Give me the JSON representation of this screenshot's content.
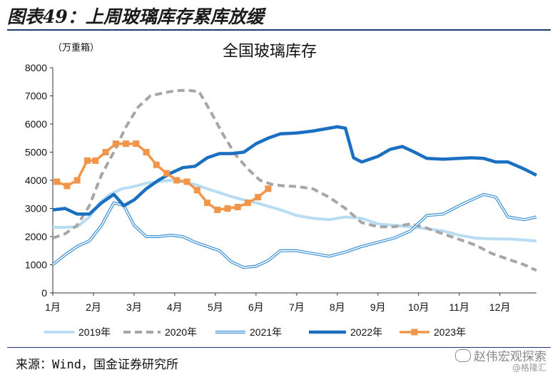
{
  "figure": {
    "title": "图表49：上周玻璃库存累库放缓",
    "source": "来源：Wind，国金证券研究所",
    "watermark": "赵伟宏观探索",
    "watermark_sub": "@格隆汇"
  },
  "chart_data": {
    "type": "line",
    "title": "全国玻璃库存",
    "unit_label": "（万重箱）",
    "xlabel": "",
    "ylabel": "",
    "ylim": [
      0,
      8000
    ],
    "yticks": [
      0,
      1000,
      2000,
      3000,
      4000,
      5000,
      6000,
      7000,
      8000
    ],
    "xlim": [
      1,
      12.9
    ],
    "xticks": [
      1,
      2,
      3,
      4,
      5,
      6,
      7,
      8,
      9,
      10,
      11,
      12
    ],
    "xtick_labels": [
      "1月",
      "2月",
      "3月",
      "4月",
      "5月",
      "6月",
      "7月",
      "8月",
      "9月",
      "10月",
      "11月",
      "12月"
    ],
    "grid": false,
    "legend_position": "bottom",
    "series": [
      {
        "name": "2019年",
        "color": "#b7dcf3",
        "style": "solid",
        "x": [
          1,
          1.3,
          1.6,
          1.9,
          2.15,
          2.4,
          2.7,
          3.0,
          3.3,
          3.6,
          3.9,
          4.2,
          4.5,
          4.8,
          5.1,
          5.4,
          5.7,
          6.0,
          6.3,
          6.6,
          7.0,
          7.4,
          7.8,
          8.2,
          8.6,
          9.0,
          9.4,
          9.8,
          10.2,
          10.6,
          11.0,
          11.4,
          11.8,
          12.2,
          12.6,
          12.9
        ],
        "values": [
          2330,
          2330,
          2350,
          2700,
          3200,
          3500,
          3700,
          3780,
          3900,
          3950,
          4000,
          3950,
          3850,
          3700,
          3560,
          3420,
          3300,
          3200,
          3080,
          2950,
          2750,
          2650,
          2600,
          2700,
          2650,
          2450,
          2400,
          2350,
          2280,
          2200,
          2050,
          1950,
          1920,
          1920,
          1880,
          1840
        ]
      },
      {
        "name": "2020年",
        "color": "#a6a6a6",
        "style": "dashed",
        "x": [
          1,
          1.3,
          1.6,
          1.9,
          2.2,
          2.5,
          2.8,
          3.1,
          3.4,
          3.7,
          4.0,
          4.3,
          4.6,
          4.9,
          5.2,
          5.5,
          5.8,
          6.1,
          6.4,
          6.7,
          7.0,
          7.4,
          7.8,
          8.2,
          8.6,
          9.0,
          9.4,
          9.8,
          10.2,
          10.6,
          11.0,
          11.4,
          11.8,
          12.2,
          12.6,
          12.9
        ],
        "values": [
          1950,
          2100,
          2400,
          3100,
          4200,
          5000,
          5900,
          6600,
          7000,
          7100,
          7180,
          7200,
          7150,
          6400,
          5600,
          4900,
          4400,
          4000,
          3850,
          3800,
          3780,
          3700,
          3400,
          3000,
          2500,
          2350,
          2350,
          2450,
          2300,
          2100,
          1900,
          1700,
          1400,
          1200,
          1000,
          800
        ]
      },
      {
        "name": "2021年",
        "color": "#3b8fd1",
        "style": "double",
        "x": [
          1,
          1.3,
          1.6,
          1.9,
          2.2,
          2.5,
          2.75,
          3.0,
          3.3,
          3.6,
          3.9,
          4.2,
          4.5,
          4.8,
          5.1,
          5.4,
          5.7,
          6.0,
          6.3,
          6.6,
          7.0,
          7.4,
          7.8,
          8.2,
          8.6,
          9.0,
          9.4,
          9.8,
          10.2,
          10.6,
          11.0,
          11.3,
          11.6,
          11.9,
          12.2,
          12.6,
          12.9
        ],
        "values": [
          1000,
          1350,
          1650,
          1850,
          2400,
          3200,
          3100,
          2400,
          2000,
          2000,
          2050,
          2000,
          1800,
          1650,
          1500,
          1100,
          900,
          950,
          1150,
          1500,
          1500,
          1400,
          1300,
          1450,
          1650,
          1800,
          1950,
          2200,
          2750,
          2800,
          3100,
          3300,
          3500,
          3400,
          2700,
          2600,
          2700
        ]
      },
      {
        "name": "2022年",
        "color": "#1a6fc0",
        "style": "bold",
        "x": [
          1,
          1.3,
          1.6,
          1.9,
          2.2,
          2.5,
          2.75,
          3.0,
          3.3,
          3.6,
          3.9,
          4.2,
          4.5,
          4.8,
          5.1,
          5.4,
          5.7,
          6.0,
          6.3,
          6.6,
          7.0,
          7.4,
          7.8,
          8.0,
          8.2,
          8.4,
          8.6,
          9.0,
          9.3,
          9.6,
          9.9,
          10.2,
          10.6,
          11.0,
          11.3,
          11.6,
          11.9,
          12.2,
          12.6,
          12.9
        ],
        "values": [
          2950,
          3000,
          2800,
          2800,
          3200,
          3500,
          3100,
          3300,
          3700,
          4000,
          4250,
          4450,
          4500,
          4800,
          4950,
          4950,
          5000,
          5300,
          5500,
          5650,
          5680,
          5750,
          5850,
          5900,
          5850,
          4800,
          4650,
          4850,
          5100,
          5200,
          5000,
          4780,
          4750,
          4780,
          4800,
          4780,
          4650,
          4650,
          4400,
          4180
        ]
      },
      {
        "name": "2023年",
        "color": "#f0954a",
        "style": "marker",
        "x": [
          1.1,
          1.35,
          1.6,
          1.85,
          2.05,
          2.3,
          2.55,
          2.8,
          3.05,
          3.3,
          3.55,
          3.8,
          4.05,
          4.3,
          4.55,
          4.8,
          5.05,
          5.3,
          5.55,
          5.8,
          6.05,
          6.3
        ],
        "values": [
          3950,
          3800,
          4000,
          4700,
          4700,
          5000,
          5300,
          5300,
          5300,
          5000,
          4550,
          4250,
          4000,
          3950,
          3650,
          3200,
          2950,
          3000,
          3050,
          3200,
          3400,
          3700
        ]
      }
    ]
  }
}
